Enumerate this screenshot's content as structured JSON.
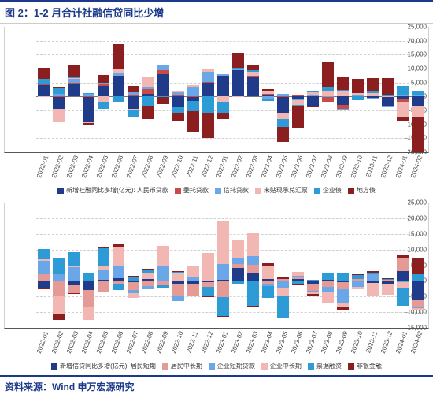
{
  "title": "图 2：1-2 月合计社融信贷同比少增",
  "source": "资料来源：Wind 申万宏源研究",
  "periods": [
    "2022-01",
    "2022-02",
    "2022-03",
    "2022-04",
    "2022-05",
    "2022-06",
    "2022-07",
    "2022-08",
    "2022-09",
    "2022-10",
    "2022-11",
    "2022-12",
    "2023-01",
    "2023-02",
    "2023-03",
    "2023-04",
    "2023-05",
    "2023-06",
    "2023-07",
    "2023-08",
    "2023-09",
    "2023-10",
    "2023-11",
    "2023-12",
    "2024-01",
    "2024-02"
  ],
  "chart1": {
    "type": "stacked-bar",
    "ylim": [
      -20000,
      25000
    ],
    "ytick_step": 5000,
    "background_color": "#ffffff",
    "grid_color": "#d9d9d9",
    "series": [
      {
        "key": "rmb_loan",
        "label": "新增社融同比多增(亿元): 人民币贷款",
        "color": "#1f3b8a"
      },
      {
        "key": "trust",
        "label": "委托贷款",
        "color": "#c94b46"
      },
      {
        "key": "entrust",
        "label": "信托贷款",
        "color": "#6aa7e8"
      },
      {
        "key": "undisc",
        "label": "未贴现承兑汇票",
        "color": "#f2b7b3"
      },
      {
        "key": "corp_bond",
        "label": "企业债",
        "color": "#2d9bd6"
      },
      {
        "key": "local_bond",
        "label": "地方债",
        "color": "#8b1f1f"
      }
    ],
    "data": [
      {
        "rmb_loan": 4000,
        "trust": 400,
        "entrust": 300,
        "undisc": -300,
        "corp_bond": 1500,
        "local_bond": 4000
      },
      {
        "rmb_loan": -4500,
        "trust": 200,
        "entrust": 800,
        "undisc": -4800,
        "corp_bond": 1800,
        "local_bond": 700
      },
      {
        "rmb_loan": 4800,
        "trust": 150,
        "entrust": 1400,
        "undisc": 300,
        "corp_bond": 100,
        "local_bond": 4300
      },
      {
        "rmb_loan": -9200,
        "trust": 200,
        "entrust": 700,
        "undisc": -400,
        "corp_bond": 200,
        "local_bond": -400
      },
      {
        "rmb_loan": 3900,
        "trust": 300,
        "entrust": 700,
        "undisc": -1800,
        "corp_bond": -2500,
        "local_bond": 2900
      },
      {
        "rmb_loan": 7400,
        "trust": 100,
        "entrust": 1200,
        "undisc": 1400,
        "corp_bond": -2000,
        "local_bond": 8700
      },
      {
        "rmb_loan": -4300,
        "trust": 250,
        "entrust": 1200,
        "undisc": -500,
        "corp_bond": -2400,
        "local_bond": 2200
      },
      {
        "rmb_loan": 1000,
        "trust": 1600,
        "entrust": 900,
        "undisc": 3500,
        "corp_bond": -3500,
        "local_bond": -4600
      },
      {
        "rmb_loan": 8000,
        "trust": 1500,
        "entrust": 1900,
        "undisc": 100,
        "corp_bond": -300,
        "local_bond": -2500
      },
      {
        "rmb_loan": -3800,
        "trust": 600,
        "entrust": 1000,
        "undisc": 500,
        "corp_bond": -2000,
        "local_bond": -3300
      },
      {
        "rmb_loan": -1700,
        "trust": 200,
        "entrust": 3300,
        "undisc": 600,
        "corp_bond": -3500,
        "local_bond": -7500
      },
      {
        "rmb_loan": 5000,
        "trust": 100,
        "entrust": 3800,
        "undisc": 900,
        "corp_bond": -6000,
        "local_bond": -8900
      },
      {
        "rmb_loan": 7300,
        "trust": 150,
        "entrust": 600,
        "undisc": -1800,
        "corp_bond": -4400,
        "local_bond": -1900
      },
      {
        "rmb_loan": 9300,
        "trust": -40,
        "entrust": 800,
        "undisc": -200,
        "corp_bond": 200,
        "local_bond": 5400
      },
      {
        "rmb_loan": 7200,
        "trust": 70,
        "entrust": 200,
        "undisc": 1500,
        "corp_bond": 500,
        "local_bond": 1700
      },
      {
        "rmb_loan": 800,
        "trust": 80,
        "entrust": -700,
        "undisc": 1200,
        "corp_bond": -800,
        "local_bond": 600
      },
      {
        "rmb_loan": -6200,
        "trust": 170,
        "entrust": 900,
        "undisc": -1800,
        "corp_bond": -3000,
        "local_bond": -5200
      },
      {
        "rmb_loan": -1100,
        "trust": 320,
        "entrust": -200,
        "undisc": -1800,
        "corp_bond": -100,
        "local_bond": -8200
      },
      {
        "rmb_loan": -3400,
        "trust": -80,
        "entrust": 600,
        "undisc": 800,
        "corp_bond": 800,
        "local_bond": -100
      },
      {
        "rmb_loan": -100,
        "trust": -1700,
        "entrust": 200,
        "undisc": 1900,
        "corp_bond": 1400,
        "local_bond": 8700
      },
      {
        "rmb_loan": -3100,
        "trust": -1300,
        "entrust": -100,
        "undisc": 2000,
        "corp_bond": 350,
        "local_bond": 4400
      },
      {
        "rmb_loan": 200,
        "trust": -40,
        "entrust": 450,
        "undisc": 600,
        "corp_bond": -1200,
        "local_bond": 5200
      },
      {
        "rmb_loan": -350,
        "trust": -40,
        "entrust": -500,
        "undisc": 1200,
        "corp_bond": 700,
        "local_bond": 4700
      },
      {
        "rmb_loan": -3500,
        "trust": -40,
        "entrust": -100,
        "undisc": 200,
        "corp_bond": 500,
        "local_bond": 5900
      },
      {
        "rmb_loan": -900,
        "trust": -940,
        "entrust": 700,
        "undisc": -5600,
        "corp_bond": 3200,
        "local_bond": -1200
      },
      {
        "rmb_loan": -3600,
        "trust": -100,
        "entrust": 300,
        "undisc": -3600,
        "corp_bond": 1400,
        "local_bond": -12600
      }
    ]
  },
  "chart2": {
    "type": "stacked-bar",
    "ylim": [
      -15000,
      25000
    ],
    "ytick_step": 5000,
    "background_color": "#ffffff",
    "grid_color": "#d9d9d9",
    "series": [
      {
        "key": "hh_st",
        "label": "新增信贷同比多增(亿元): 居民短期",
        "color": "#1f3b8a"
      },
      {
        "key": "hh_lt",
        "label": "居民中长期",
        "color": "#e59a95"
      },
      {
        "key": "corp_st",
        "label": "企业短期贷款",
        "color": "#6aa7e8"
      },
      {
        "key": "corp_lt",
        "label": "企业中长期",
        "color": "#f2b7b3"
      },
      {
        "key": "bill",
        "label": "票据融资",
        "color": "#2d9bd6"
      },
      {
        "key": "nonbank",
        "label": "非银金融",
        "color": "#8b1f1f"
      }
    ],
    "data": [
      {
        "hh_st": -2300,
        "hh_lt": 2000,
        "corp_st": 4400,
        "corp_lt": 600,
        "bill": 3200,
        "nonbank": -200
      },
      {
        "hh_st": 200,
        "hh_lt": -4600,
        "corp_st": 2000,
        "corp_lt": -6000,
        "bill": 4900,
        "nonbank": -1800
      },
      {
        "hh_st": -1400,
        "hh_lt": -2500,
        "corp_st": 4400,
        "corp_lt": 150,
        "bill": 4700,
        "nonbank": -400
      },
      {
        "hh_st": -3000,
        "hh_lt": -5200,
        "corp_st": -200,
        "corp_lt": -4000,
        "bill": 2400,
        "nonbank": 150
      },
      {
        "hh_st": 400,
        "hh_lt": -3400,
        "corp_st": 3300,
        "corp_lt": 1000,
        "bill": 5600,
        "nonbank": 250
      },
      {
        "hh_st": 800,
        "hh_lt": -1000,
        "corp_st": 3800,
        "corp_lt": 6100,
        "bill": -1900,
        "nonbank": 1100
      },
      {
        "hh_st": -400,
        "hh_lt": -2500,
        "corp_st": -1000,
        "corp_lt": -1500,
        "bill": 1400,
        "nonbank": 100
      },
      {
        "hh_st": 500,
        "hh_lt": -1600,
        "corp_st": -1100,
        "corp_lt": 2100,
        "bill": 1300,
        "nonbank": 50
      },
      {
        "hh_st": -200,
        "hh_lt": -1200,
        "corp_st": 4700,
        "corp_lt": 6500,
        "bill": -800,
        "nonbank": -200
      },
      {
        "hh_st": -1000,
        "hh_lt": -3900,
        "corp_st": -1600,
        "corp_lt": 2400,
        "bill": 700,
        "nonbank": 100
      },
      {
        "hh_st": -900,
        "hh_lt": -3800,
        "corp_st": 1000,
        "corp_lt": 3900,
        "bill": -60,
        "nonbank": 100
      },
      {
        "hh_st": -300,
        "hh_lt": -1700,
        "corp_st": 150,
        "corp_lt": 8700,
        "bill": -2900,
        "nonbank": -100
      },
      {
        "hh_st": 300,
        "hh_lt": -5200,
        "corp_st": 5000,
        "corp_lt": 14000,
        "bill": -6000,
        "nonbank": -100
      },
      {
        "hh_st": 4100,
        "hh_lt": 1300,
        "corp_st": 1700,
        "corp_lt": 6000,
        "bill": -1000,
        "nonbank": -200
      },
      {
        "hh_st": 2600,
        "hh_lt": 2600,
        "corp_st": 2700,
        "corp_lt": 7300,
        "bill": -7900,
        "nonbank": -200
      },
      {
        "hh_st": 600,
        "hh_lt": -800,
        "corp_st": -850,
        "corp_lt": 4000,
        "bill": -3900,
        "nonbank": 1000
      },
      {
        "hh_st": 100,
        "hh_lt": 600,
        "corp_st": -2300,
        "corp_lt": -2700,
        "bill": -6700,
        "nonbank": 400
      },
      {
        "hh_st": 600,
        "hh_lt": 400,
        "corp_st": 500,
        "corp_lt": 1400,
        "bill": -1000,
        "nonbank": -400
      },
      {
        "hh_st": -1000,
        "hh_lt": -2200,
        "corp_st": -200,
        "corp_lt": -700,
        "bill": 400,
        "nonbank": -500
      },
      {
        "hh_st": 400,
        "hh_lt": -1900,
        "corp_st": -1500,
        "corp_lt": -3700,
        "bill": 1900,
        "nonbank": 300
      },
      {
        "hh_st": -400,
        "hh_lt": -2200,
        "corp_st": -4600,
        "corp_lt": -950,
        "bill": 2300,
        "nonbank": -1000
      },
      {
        "hh_st": 200,
        "hh_lt": 350,
        "corp_st": -1800,
        "corp_lt": -800,
        "bill": 1500,
        "nonbank": 100
      },
      {
        "hh_st": -700,
        "hh_lt": 200,
        "corp_st": 1800,
        "corp_lt": -3900,
        "bill": 500,
        "nonbank": 600
      },
      {
        "hh_st": -900,
        "hh_lt": 400,
        "corp_st": -200,
        "corp_lt": -3300,
        "bill": 350,
        "nonbank": 100
      },
      {
        "hh_st": 3100,
        "hh_lt": 4200,
        "corp_st": -500,
        "corp_lt": -1900,
        "bill": -5600,
        "nonbank": 1000
      },
      {
        "hh_st": -6200,
        "hh_lt": -1900,
        "corp_st": -500,
        "corp_lt": -800,
        "bill": 2200,
        "nonbank": 5000
      }
    ]
  }
}
